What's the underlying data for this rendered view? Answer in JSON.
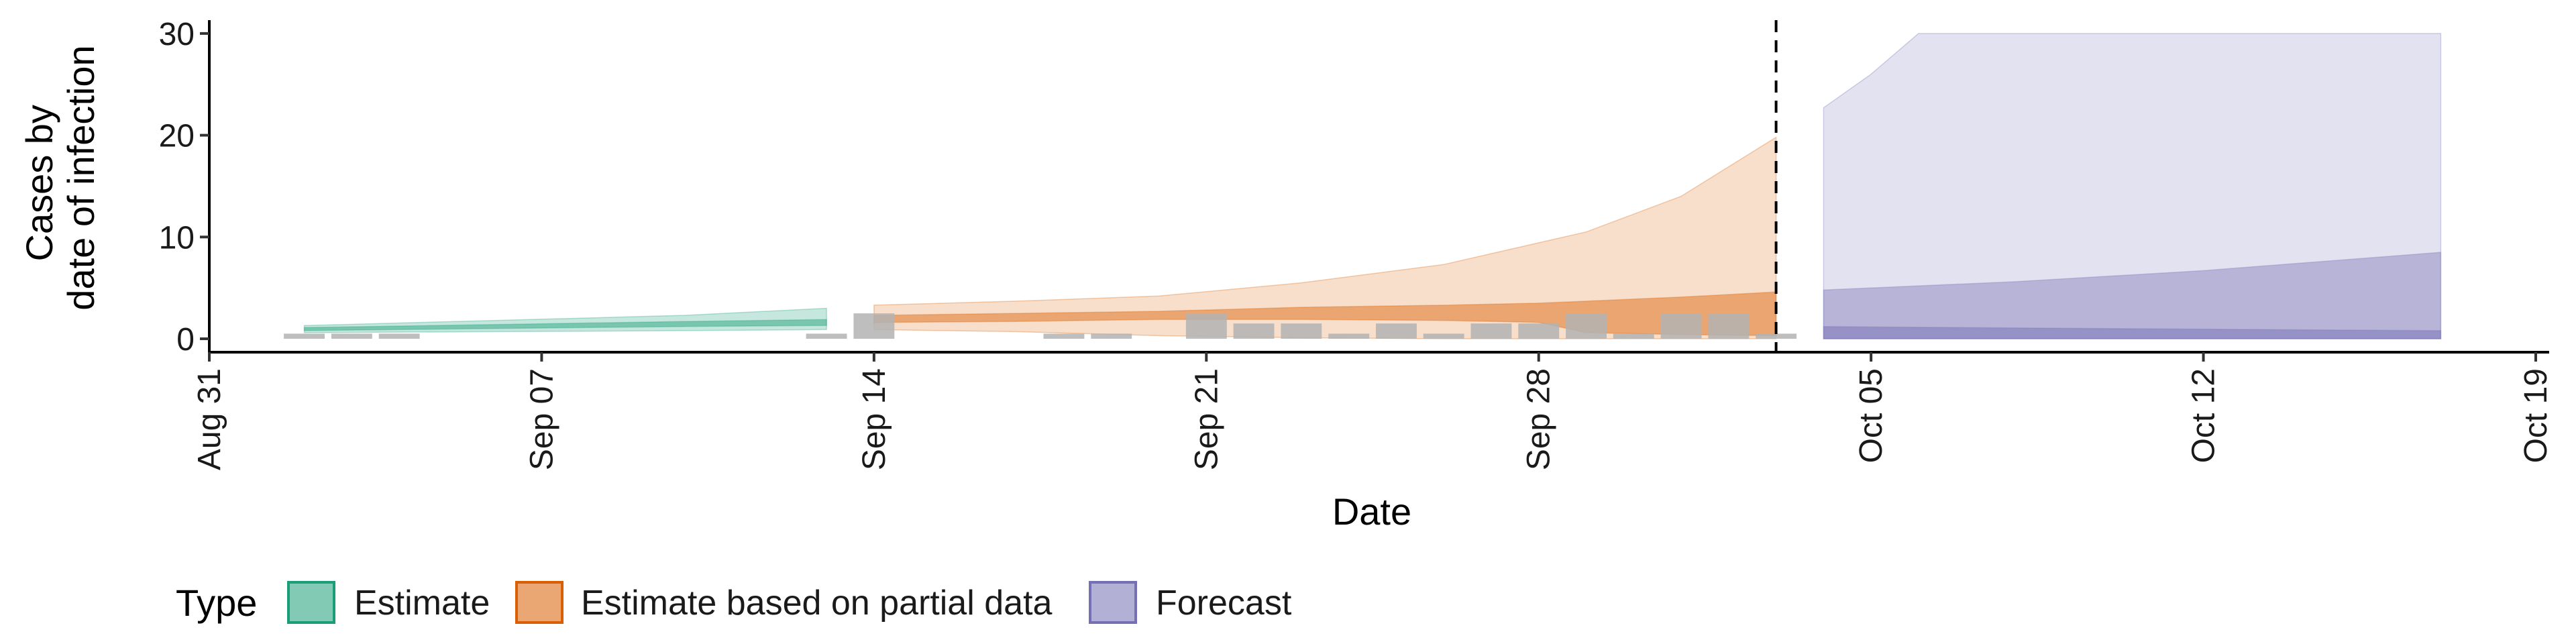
{
  "chart_data": {
    "type": "area",
    "title": "",
    "xlabel": "Date",
    "ylabel_lines": [
      "Cases by",
      "date of infection"
    ],
    "x_range": [
      "2020-08-31",
      "2020-10-19"
    ],
    "ylim": [
      -1.2,
      31.5
    ],
    "x_ticks": [
      {
        "date": "2020-08-31",
        "label": "Aug 31"
      },
      {
        "date": "2020-09-07",
        "label": "Sep 07"
      },
      {
        "date": "2020-09-14",
        "label": "Sep 14"
      },
      {
        "date": "2020-09-21",
        "label": "Sep 21"
      },
      {
        "date": "2020-09-28",
        "label": "Sep 28"
      },
      {
        "date": "2020-10-05",
        "label": "Oct 05"
      },
      {
        "date": "2020-10-12",
        "label": "Oct 12"
      },
      {
        "date": "2020-10-19",
        "label": "Oct 19"
      }
    ],
    "y_ticks": [
      {
        "value": 0,
        "label": "0"
      },
      {
        "value": 10,
        "label": "10"
      },
      {
        "value": 20,
        "label": "20"
      },
      {
        "value": 30,
        "label": "30"
      }
    ],
    "vline_date": "2020-10-03",
    "grid": false,
    "legend": {
      "title": "Type",
      "position": "bottom",
      "entries": [
        {
          "label": "Estimate",
          "fill": "#1b9e77"
        },
        {
          "label": "Estimate based on partial data",
          "fill": "#d95f02"
        },
        {
          "label": "Forecast",
          "fill": "#7570b3"
        }
      ]
    },
    "observed_cases": {
      "color": "#b3b3b3",
      "bars": [
        {
          "date": "2020-09-02",
          "value": 0.5
        },
        {
          "date": "2020-09-03",
          "value": 0.5
        },
        {
          "date": "2020-09-04",
          "value": 0.5
        },
        {
          "date": "2020-09-13",
          "value": 0.5
        },
        {
          "date": "2020-09-14",
          "value": 2.5
        },
        {
          "date": "2020-09-18",
          "value": 0.5
        },
        {
          "date": "2020-09-19",
          "value": 0.5
        },
        {
          "date": "2020-09-21",
          "value": 2.5
        },
        {
          "date": "2020-09-22",
          "value": 1.5
        },
        {
          "date": "2020-09-23",
          "value": 1.5
        },
        {
          "date": "2020-09-24",
          "value": 0.5
        },
        {
          "date": "2020-09-25",
          "value": 1.5
        },
        {
          "date": "2020-09-26",
          "value": 0.5
        },
        {
          "date": "2020-09-27",
          "value": 1.5
        },
        {
          "date": "2020-09-28",
          "value": 1.5
        },
        {
          "date": "2020-09-29",
          "value": 2.5
        },
        {
          "date": "2020-09-30",
          "value": 0.5
        },
        {
          "date": "2020-10-01",
          "value": 2.5
        },
        {
          "date": "2020-10-02",
          "value": 2.5
        },
        {
          "date": "2020-10-03",
          "value": 0.5
        }
      ]
    },
    "series": [
      {
        "name": "Estimate",
        "color": "#1b9e77",
        "bands": [
          {
            "level": "outer",
            "opacity": 0.25,
            "points": [
              {
                "x": "2020-09-02",
                "low": 0.6,
                "high": 1.3
              },
              {
                "x": "2020-09-06",
                "low": 0.7,
                "high": 1.8
              },
              {
                "x": "2020-09-10",
                "low": 0.8,
                "high": 2.3
              },
              {
                "x": "2020-09-13",
                "low": 0.9,
                "high": 3.0
              }
            ]
          },
          {
            "level": "inner",
            "opacity": 0.45,
            "points": [
              {
                "x": "2020-09-02",
                "low": 0.8,
                "high": 1.1
              },
              {
                "x": "2020-09-06",
                "low": 1.0,
                "high": 1.4
              },
              {
                "x": "2020-09-10",
                "low": 1.2,
                "high": 1.7
              },
              {
                "x": "2020-09-13",
                "low": 1.3,
                "high": 1.9
              }
            ]
          }
        ]
      },
      {
        "name": "Estimate based on partial data",
        "color": "#d95f02",
        "bands": [
          {
            "level": "outer",
            "opacity": 0.2,
            "points": [
              {
                "x": "2020-09-14",
                "low": 0.9,
                "high": 3.3
              },
              {
                "x": "2020-09-17",
                "low": 0.7,
                "high": 3.7
              },
              {
                "x": "2020-09-20",
                "low": 0.3,
                "high": 4.2
              },
              {
                "x": "2020-09-23",
                "low": 0.1,
                "high": 5.5
              },
              {
                "x": "2020-09-26",
                "low": 0.0,
                "high": 7.3
              },
              {
                "x": "2020-09-29",
                "low": 0.0,
                "high": 10.5
              },
              {
                "x": "2020-10-01",
                "low": 0.0,
                "high": 14.0
              },
              {
                "x": "2020-10-03",
                "low": 0.0,
                "high": 19.8
              }
            ]
          },
          {
            "level": "inner",
            "opacity": 0.45,
            "points": [
              {
                "x": "2020-09-14",
                "low": 1.6,
                "high": 2.3
              },
              {
                "x": "2020-09-17",
                "low": 1.7,
                "high": 2.5
              },
              {
                "x": "2020-09-20",
                "low": 1.9,
                "high": 2.7
              },
              {
                "x": "2020-09-23",
                "low": 1.9,
                "high": 3.1
              },
              {
                "x": "2020-09-26",
                "low": 1.8,
                "high": 3.3
              },
              {
                "x": "2020-09-28",
                "low": 1.6,
                "high": 3.5
              },
              {
                "x": "2020-09-29",
                "low": 0.6,
                "high": 3.7
              },
              {
                "x": "2020-10-01",
                "low": 0.4,
                "high": 4.1
              },
              {
                "x": "2020-10-03",
                "low": 0.3,
                "high": 4.6
              }
            ]
          }
        ]
      },
      {
        "name": "Forecast",
        "color": "#7570b3",
        "bands": [
          {
            "level": "outer",
            "opacity": 0.2,
            "points": [
              {
                "x": "2020-10-04",
                "low": 0.0,
                "high": 22.7
              },
              {
                "x": "2020-10-05",
                "low": 0.0,
                "high": 26.0
              },
              {
                "x": "2020-10-06",
                "low": 0.0,
                "high": 30.0
              },
              {
                "x": "2020-10-17",
                "low": 0.0,
                "high": 30.0
              }
            ]
          },
          {
            "level": "inner",
            "opacity": 0.4,
            "points": [
              {
                "x": "2020-10-04",
                "low": 0.0,
                "high": 4.8
              },
              {
                "x": "2020-10-08",
                "low": 0.0,
                "high": 5.6
              },
              {
                "x": "2020-10-12",
                "low": 0.0,
                "high": 6.7
              },
              {
                "x": "2020-10-17",
                "low": 0.0,
                "high": 8.5
              }
            ]
          },
          {
            "level": "median",
            "opacity": 0.5,
            "points": [
              {
                "x": "2020-10-04",
                "low": 0.0,
                "high": 1.2
              },
              {
                "x": "2020-10-10",
                "low": 0.0,
                "high": 1.0
              },
              {
                "x": "2020-10-17",
                "low": 0.0,
                "high": 0.8
              }
            ]
          }
        ]
      }
    ]
  }
}
